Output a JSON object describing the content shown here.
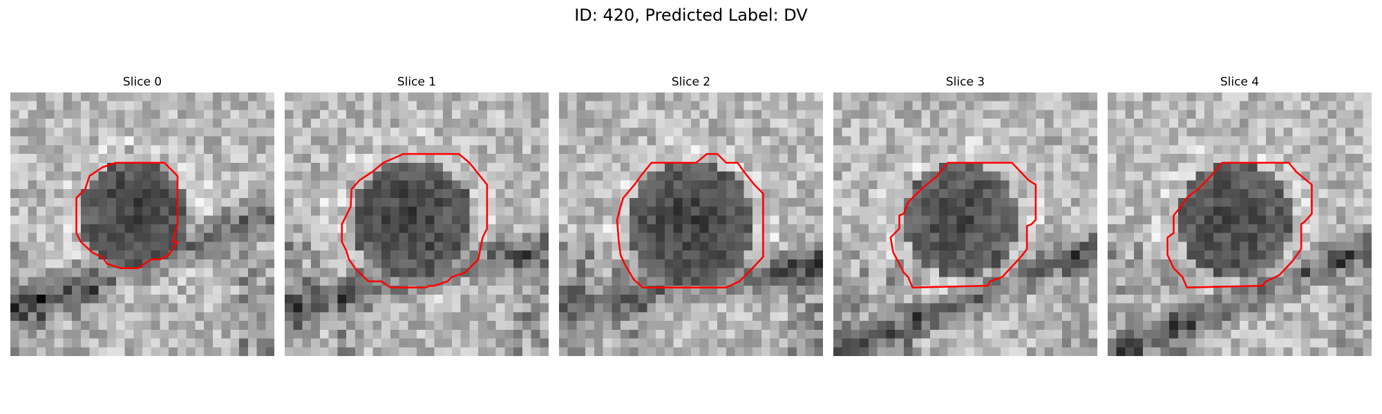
{
  "figure": {
    "title": "ID: 420, Predicted Label: DV"
  },
  "colors": {
    "contour": "#ff0000",
    "background": "#ffffff"
  },
  "grid_size": 30,
  "slices": [
    {
      "label": "Slice 0",
      "seed": 11,
      "blob": {
        "cx": 14,
        "cy": 14,
        "r": 6.2,
        "core_dark": 0.85
      },
      "band": {
        "angle": -0.35,
        "offset": -4,
        "width": 6
      },
      "contour": [
        [
          12,
          8
        ],
        [
          17.5,
          8
        ],
        [
          19,
          9.5
        ],
        [
          19,
          15
        ],
        [
          18.5,
          17
        ],
        [
          19,
          17
        ],
        [
          18,
          18.5
        ],
        [
          17,
          19
        ],
        [
          16,
          19
        ],
        [
          14.5,
          20
        ],
        [
          12.5,
          20
        ],
        [
          11,
          19.5
        ],
        [
          10.5,
          18.8
        ],
        [
          9.3,
          18.2
        ],
        [
          8,
          17
        ],
        [
          7.5,
          16
        ],
        [
          7.5,
          12
        ],
        [
          8.5,
          11
        ],
        [
          9,
          9.5
        ],
        [
          10.5,
          8.5
        ]
      ]
    },
    {
      "label": "Slice 1",
      "seed": 23,
      "blob": {
        "cx": 14.5,
        "cy": 14.5,
        "r": 7.0,
        "core_dark": 0.8
      },
      "band": {
        "angle": -0.25,
        "offset": -6,
        "width": 5
      },
      "contour": [
        [
          13.5,
          7
        ],
        [
          19.8,
          7
        ],
        [
          21,
          8
        ],
        [
          23,
          10.5
        ],
        [
          23,
          15.5
        ],
        [
          22.5,
          16.5
        ],
        [
          22,
          19
        ],
        [
          21.5,
          19.5
        ],
        [
          20.5,
          20.5
        ],
        [
          19,
          21
        ],
        [
          18.5,
          21.5
        ],
        [
          17,
          22
        ],
        [
          16.5,
          22
        ],
        [
          16,
          22.2
        ],
        [
          12,
          22.2
        ],
        [
          11,
          21.5
        ],
        [
          9.5,
          21.5
        ],
        [
          8,
          20
        ],
        [
          7.3,
          19
        ],
        [
          7,
          18
        ],
        [
          6.5,
          17
        ],
        [
          6.5,
          15
        ],
        [
          7,
          14
        ],
        [
          7.5,
          13
        ],
        [
          7.6,
          11
        ],
        [
          8.5,
          10
        ],
        [
          10,
          9
        ],
        [
          11.2,
          8
        ]
      ]
    },
    {
      "label": "Slice 2",
      "seed": 37,
      "blob": {
        "cx": 15,
        "cy": 15,
        "r": 7.2,
        "core_dark": 0.85
      },
      "band": {
        "angle": -0.15,
        "offset": -7,
        "width": 5
      },
      "contour": [
        [
          10.5,
          8
        ],
        [
          15.6,
          8
        ],
        [
          16.8,
          7
        ],
        [
          18,
          7
        ],
        [
          19,
          8
        ],
        [
          20.3,
          8
        ],
        [
          21,
          9
        ],
        [
          22.2,
          10.5
        ],
        [
          23.2,
          11.5
        ],
        [
          23.2,
          18.7
        ],
        [
          22,
          20
        ],
        [
          20.5,
          21.5
        ],
        [
          19,
          22.2
        ],
        [
          9.5,
          22.2
        ],
        [
          8.5,
          21.3
        ],
        [
          7.5,
          19.6
        ],
        [
          7,
          18.5
        ],
        [
          6.8,
          17
        ],
        [
          6.6,
          14.5
        ],
        [
          7,
          13
        ],
        [
          7.3,
          12
        ],
        [
          8.5,
          10.6
        ],
        [
          9.3,
          9.5
        ]
      ]
    },
    {
      "label": "Slice 3",
      "seed": 49,
      "blob": {
        "cx": 14.5,
        "cy": 14.5,
        "r": 6.6,
        "core_dark": 0.55
      },
      "band": {
        "angle": -0.4,
        "offset": -8,
        "width": 5
      },
      "contour": [
        [
          13,
          8
        ],
        [
          20.3,
          8
        ],
        [
          22.2,
          10
        ],
        [
          23,
          10.5
        ],
        [
          23,
          14.5
        ],
        [
          22.5,
          15
        ],
        [
          22,
          15.2
        ],
        [
          22,
          17.8
        ],
        [
          21.5,
          18.5
        ],
        [
          20.5,
          19.6
        ],
        [
          19.2,
          21
        ],
        [
          17.8,
          21.5
        ],
        [
          17.6,
          22
        ],
        [
          9,
          22.2
        ],
        [
          8.5,
          21
        ],
        [
          8,
          20.5
        ],
        [
          7.5,
          19.5
        ],
        [
          6.8,
          18.2
        ],
        [
          6.5,
          16.5
        ],
        [
          7.5,
          15.5
        ],
        [
          7.5,
          14
        ],
        [
          8,
          13.8
        ],
        [
          8.5,
          12.5
        ],
        [
          10,
          11
        ],
        [
          11.8,
          9.5
        ]
      ]
    },
    {
      "label": "Slice 4",
      "seed": 61,
      "blob": {
        "cx": 14.5,
        "cy": 14.5,
        "r": 6.6,
        "core_dark": 0.55
      },
      "band": {
        "angle": -0.4,
        "offset": -8,
        "width": 5
      },
      "contour": [
        [
          13,
          8
        ],
        [
          20.6,
          8
        ],
        [
          21.4,
          9
        ],
        [
          23.2,
          10.5
        ],
        [
          23.2,
          13.8
        ],
        [
          22.4,
          14.7
        ],
        [
          22,
          15
        ],
        [
          22,
          17.8
        ],
        [
          21.5,
          18.5
        ],
        [
          21,
          19.2
        ],
        [
          19.5,
          20.8
        ],
        [
          18,
          21.5
        ],
        [
          17.6,
          22
        ],
        [
          9,
          22.2
        ],
        [
          8.5,
          21
        ],
        [
          7.5,
          20
        ],
        [
          6.8,
          18.5
        ],
        [
          6.8,
          16.5
        ],
        [
          7.5,
          16
        ],
        [
          7.5,
          14
        ],
        [
          8.3,
          13
        ],
        [
          9,
          12
        ],
        [
          10.5,
          10.8
        ],
        [
          12,
          9.2
        ]
      ]
    }
  ]
}
